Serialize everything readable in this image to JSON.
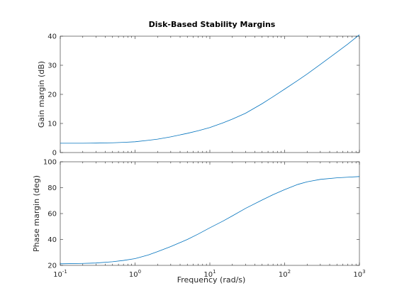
{
  "chart_data": [
    {
      "type": "line",
      "title": "Disk-Based Stability Margins",
      "xlabel": "",
      "ylabel": "Gain margin (dB)",
      "xscale": "log",
      "xlim": [
        0.1,
        1000
      ],
      "ylim": [
        0,
        40
      ],
      "grid": false,
      "color": "#0072bd",
      "yticks": [
        "0",
        "10",
        "20",
        "30",
        "40"
      ],
      "series": [
        {
          "x": [
            0.1,
            0.2,
            0.3,
            0.5,
            0.7,
            1,
            1.5,
            2,
            3,
            5,
            7,
            10,
            15,
            20,
            30,
            50,
            70,
            100,
            150,
            200,
            300,
            500,
            700,
            1000
          ],
          "y": [
            3.2,
            3.2,
            3.25,
            3.35,
            3.5,
            3.7,
            4.2,
            4.6,
            5.4,
            6.6,
            7.5,
            8.6,
            10.2,
            11.5,
            13.5,
            16.8,
            19.2,
            21.8,
            24.8,
            27.0,
            30.3,
            34.5,
            37.3,
            40.5
          ]
        }
      ]
    },
    {
      "type": "line",
      "title": "",
      "xlabel": "Frequency (rad/s)",
      "ylabel": "Phase margin (deg)",
      "xscale": "log",
      "xlim": [
        0.1,
        1000
      ],
      "ylim": [
        20,
        100
      ],
      "grid": false,
      "color": "#0072bd",
      "yticks": [
        "20",
        "40",
        "60",
        "80",
        "100"
      ],
      "xticks": [
        {
          "base": "10",
          "exp": "-1"
        },
        {
          "base": "10",
          "exp": "0"
        },
        {
          "base": "10",
          "exp": "1"
        },
        {
          "base": "10",
          "exp": "2"
        },
        {
          "base": "10",
          "exp": "3"
        }
      ],
      "series": [
        {
          "x": [
            0.1,
            0.2,
            0.3,
            0.5,
            0.7,
            1,
            1.5,
            2,
            3,
            5,
            7,
            10,
            15,
            20,
            30,
            50,
            70,
            100,
            150,
            200,
            300,
            500,
            700,
            1000
          ],
          "y": [
            21.2,
            21.5,
            21.8,
            22.8,
            23.8,
            25.2,
            28.0,
            30.6,
            34.5,
            40.0,
            44.2,
            49.0,
            54.2,
            58.2,
            64.0,
            70.5,
            74.6,
            78.5,
            82.5,
            84.5,
            86.4,
            87.6,
            88.1,
            88.6
          ]
        }
      ]
    }
  ]
}
